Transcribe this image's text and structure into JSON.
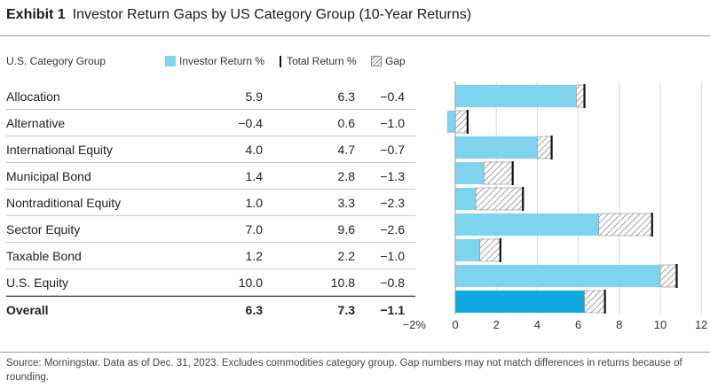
{
  "exhibit": "Exhibit 1",
  "title": "Investor Return Gaps by US Category Group (10-Year Returns)",
  "columns": {
    "group": "U.S. Category Group",
    "investor_return": "Investor Return %",
    "total_return": "Total Return %",
    "gap": "Gap"
  },
  "rows": [
    {
      "name": "Allocation",
      "investor": "5.9",
      "total": "6.3",
      "gap": "−0.4"
    },
    {
      "name": "Alternative",
      "investor": "−0.4",
      "total": "0.6",
      "gap": "−1.0"
    },
    {
      "name": "International Equity",
      "investor": "4.0",
      "total": "4.7",
      "gap": "−0.7"
    },
    {
      "name": "Municipal Bond",
      "investor": "1.4",
      "total": "2.8",
      "gap": "−1.3"
    },
    {
      "name": "Nontraditional Equity",
      "investor": "1.0",
      "total": "3.3",
      "gap": "−2.3"
    },
    {
      "name": "Sector Equity",
      "investor": "7.0",
      "total": "9.6",
      "gap": "−2.6"
    },
    {
      "name": "Taxable Bond",
      "investor": "1.2",
      "total": "2.2",
      "gap": "−1.0"
    },
    {
      "name": "U.S. Equity",
      "investor": "10.0",
      "total": "10.8",
      "gap": "−0.8"
    },
    {
      "name": "Overall",
      "investor": "6.3",
      "total": "7.3",
      "gap": "−1.1"
    }
  ],
  "source": "Source: Morningstar. Data as of Dec. 31, 2023. Excludes commodities category group. Gap numbers may not match differences in returns because of rounding.",
  "colors": {
    "investor": "#7ed3ee",
    "overall_investor": "#10a8de",
    "total_marker": "#111111",
    "gap_hatch": "#8a8a8a",
    "grid": "#d9d9d9",
    "zero_line": "#9a9a9a"
  },
  "chart_data": {
    "type": "bar",
    "orientation": "horizontal",
    "categories": [
      "Allocation",
      "Alternative",
      "International Equity",
      "Municipal Bond",
      "Nontraditional Equity",
      "Sector Equity",
      "Taxable Bond",
      "U.S. Equity",
      "Overall"
    ],
    "series": [
      {
        "name": "Investor Return %",
        "values": [
          5.9,
          -0.4,
          4.0,
          1.4,
          1.0,
          7.0,
          1.2,
          10.0,
          6.3
        ]
      },
      {
        "name": "Total Return %",
        "values": [
          6.3,
          0.6,
          4.7,
          2.8,
          3.3,
          9.6,
          2.2,
          10.8,
          7.3
        ]
      },
      {
        "name": "Gap",
        "values": [
          -0.4,
          -1.0,
          -0.7,
          -1.3,
          -2.3,
          -2.6,
          -1.0,
          -0.8,
          -1.1
        ]
      }
    ],
    "xlim": [
      -2,
      12
    ],
    "xticks": [
      -2,
      0,
      2,
      4,
      6,
      8,
      10,
      12
    ],
    "xtick_labels": [
      "−2%",
      "0",
      "2",
      "4",
      "6",
      "8",
      "10",
      "12"
    ],
    "grid": true,
    "legend": "top"
  }
}
